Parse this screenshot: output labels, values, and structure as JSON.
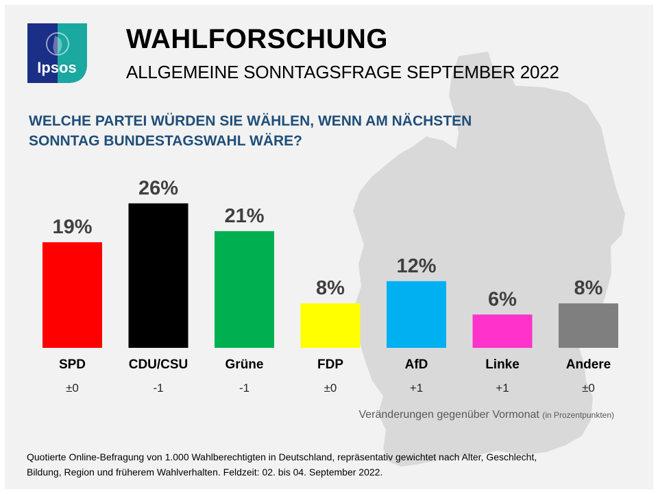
{
  "header": {
    "logo_text": "Ipsos",
    "title": "WAHLFORSCHUNG",
    "subtitle": "ALLGEMEINE SONNTAGSFRAGE SEPTEMBER 2022"
  },
  "question": "WELCHE PARTEI WÜRDEN SIE WÄHLEN, WENN AM NÄCHSTEN SONNTAG BUNDESTAGSWAHL WÄRE?",
  "chart_data": {
    "type": "bar",
    "title": "ALLGEMEINE SONNTAGSFRAGE SEPTEMBER 2022",
    "categories": [
      "SPD",
      "CDU/CSU",
      "Grüne",
      "FDP",
      "AfD",
      "Linke",
      "Andere"
    ],
    "values": [
      19,
      26,
      21,
      8,
      12,
      6,
      8
    ],
    "value_labels": [
      "19%",
      "26%",
      "21%",
      "8%",
      "12%",
      "6%",
      "8%"
    ],
    "changes": [
      "±0",
      "-1",
      "-1",
      "±0",
      "+1",
      "+1",
      "±0"
    ],
    "colors": [
      "#ff0000",
      "#000000",
      "#00b050",
      "#ffff00",
      "#00b0f0",
      "#ff33cc",
      "#7f7f7f"
    ],
    "unit": "%",
    "ylim": [
      0,
      26
    ]
  },
  "change_caption": {
    "main": "Veränderungen gegenüber Vormonat",
    "note": "(in Prozentpunkten)"
  },
  "footnote": "Quotierte Online-Befragung  von 1.000 Wahlberechtigten  in Deutschland, repräsentativ gewichtet nach Alter, Geschlecht, Bildung, Region und früherem Wahlverhalten.  Feldzeit: 02. bis 04. September 2022.",
  "colors": {
    "background": "#f2f2f2",
    "map": "#d9d9d9",
    "question": "#1f4e79",
    "logo_teal": "#1aa8a0",
    "logo_navy": "#1b2f86"
  }
}
